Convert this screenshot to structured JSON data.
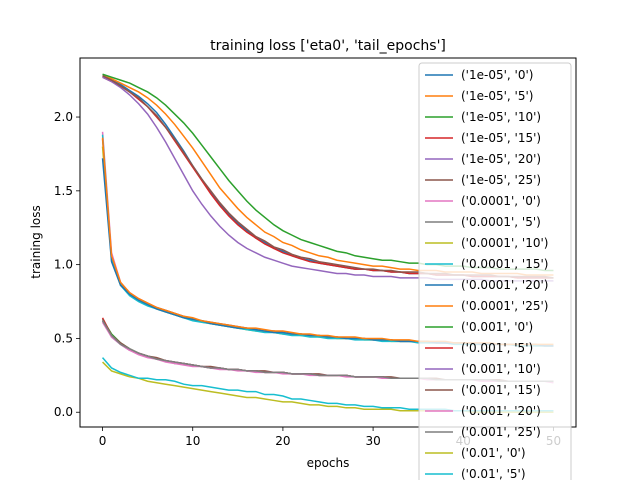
{
  "chart_data": {
    "type": "line",
    "title": "training loss ['eta0', 'tail_epochs']",
    "xlabel": "epochs",
    "ylabel": "training loss",
    "xlim": [
      -2.5,
      52.5
    ],
    "ylim": [
      -0.1,
      2.4
    ],
    "xticks": [
      0,
      10,
      20,
      30,
      40,
      50
    ],
    "yticks": [
      0.0,
      0.5,
      1.0,
      1.5,
      2.0
    ],
    "xtick_labels": [
      "0",
      "10",
      "20",
      "30",
      "40",
      "50"
    ],
    "ytick_labels": [
      "0.0",
      "0.5",
      "1.0",
      "1.5",
      "2.0"
    ],
    "grid": false,
    "legend_position": "right",
    "x": [
      0,
      1,
      2,
      3,
      4,
      5,
      6,
      7,
      8,
      9,
      10,
      11,
      12,
      13,
      14,
      15,
      16,
      17,
      18,
      19,
      20,
      21,
      22,
      23,
      24,
      25,
      26,
      27,
      28,
      29,
      30,
      31,
      32,
      33,
      34,
      35,
      36,
      37,
      38,
      39,
      40,
      41,
      42,
      43,
      44,
      45,
      46,
      47,
      48,
      49,
      50
    ],
    "series": [
      {
        "name": "('1e-05', '0')",
        "color": "#1f77b4",
        "values": [
          2.28,
          2.25,
          2.22,
          2.18,
          2.14,
          2.09,
          2.03,
          1.95,
          1.86,
          1.77,
          1.67,
          1.58,
          1.49,
          1.41,
          1.34,
          1.28,
          1.23,
          1.18,
          1.15,
          1.11,
          1.09,
          1.06,
          1.04,
          1.03,
          1.01,
          1.0,
          0.99,
          0.98,
          0.97,
          0.97,
          0.96,
          0.96,
          0.95,
          0.95,
          0.94,
          0.94,
          0.94,
          0.93,
          0.93,
          0.93,
          0.93,
          0.92,
          0.92,
          0.92,
          0.92,
          0.92,
          0.91,
          0.91,
          0.91,
          0.91,
          0.91
        ]
      },
      {
        "name": "('1e-05', '5')",
        "color": "#ff7f0e",
        "values": [
          2.28,
          2.26,
          2.23,
          2.2,
          2.17,
          2.13,
          2.08,
          2.02,
          1.95,
          1.87,
          1.79,
          1.7,
          1.61,
          1.52,
          1.45,
          1.38,
          1.32,
          1.27,
          1.22,
          1.19,
          1.15,
          1.13,
          1.1,
          1.08,
          1.06,
          1.05,
          1.03,
          1.02,
          1.01,
          1.0,
          0.99,
          0.99,
          0.98,
          0.97,
          0.97,
          0.96,
          0.96,
          0.96,
          0.95,
          0.95,
          0.95,
          0.95,
          0.94,
          0.94,
          0.94,
          0.94,
          0.94,
          0.93,
          0.93,
          0.93,
          0.93
        ]
      },
      {
        "name": "('1e-05', '10')",
        "color": "#2ca02c",
        "values": [
          2.29,
          2.27,
          2.25,
          2.23,
          2.2,
          2.17,
          2.13,
          2.08,
          2.02,
          1.96,
          1.89,
          1.81,
          1.73,
          1.65,
          1.57,
          1.5,
          1.43,
          1.37,
          1.32,
          1.27,
          1.23,
          1.2,
          1.17,
          1.15,
          1.13,
          1.11,
          1.09,
          1.08,
          1.06,
          1.05,
          1.04,
          1.03,
          1.03,
          1.02,
          1.01,
          1.01,
          1.0,
          1.0,
          0.99,
          0.99,
          0.99,
          0.98,
          0.98,
          0.98,
          0.97,
          0.97,
          0.97,
          0.97,
          0.97,
          0.96,
          0.96
        ]
      },
      {
        "name": "('1e-05', '15')",
        "color": "#d62728",
        "values": [
          2.27,
          2.24,
          2.21,
          2.17,
          2.12,
          2.07,
          2.0,
          1.93,
          1.84,
          1.75,
          1.66,
          1.57,
          1.48,
          1.4,
          1.33,
          1.27,
          1.22,
          1.18,
          1.14,
          1.11,
          1.08,
          1.06,
          1.04,
          1.02,
          1.01,
          1.0,
          0.99,
          0.98,
          0.97,
          0.97,
          0.96,
          0.96,
          0.95,
          0.95,
          0.94,
          0.94,
          0.94,
          0.93,
          0.93,
          0.93,
          0.93,
          0.92,
          0.92,
          0.92,
          0.92,
          0.92,
          0.91,
          0.91,
          0.91,
          0.91,
          0.91
        ]
      },
      {
        "name": "('1e-05', '20')",
        "color": "#9467bd",
        "values": [
          2.27,
          2.24,
          2.2,
          2.15,
          2.09,
          2.02,
          1.93,
          1.83,
          1.72,
          1.61,
          1.5,
          1.41,
          1.33,
          1.26,
          1.2,
          1.15,
          1.11,
          1.08,
          1.05,
          1.03,
          1.01,
          0.99,
          0.98,
          0.97,
          0.96,
          0.95,
          0.94,
          0.94,
          0.93,
          0.93,
          0.92,
          0.92,
          0.92,
          0.91,
          0.91,
          0.91,
          0.91,
          0.9,
          0.9,
          0.9,
          0.9,
          0.9,
          0.9,
          0.89,
          0.89,
          0.89,
          0.89,
          0.89,
          0.89,
          0.89,
          0.89
        ]
      },
      {
        "name": "('1e-05', '25')",
        "color": "#8c564b",
        "values": [
          2.28,
          2.25,
          2.21,
          2.17,
          2.13,
          2.07,
          2.01,
          1.93,
          1.85,
          1.76,
          1.67,
          1.58,
          1.5,
          1.42,
          1.35,
          1.29,
          1.24,
          1.19,
          1.16,
          1.12,
          1.1,
          1.07,
          1.05,
          1.04,
          1.02,
          1.01,
          1.0,
          0.99,
          0.98,
          0.97,
          0.97,
          0.96,
          0.96,
          0.95,
          0.95,
          0.95,
          0.94,
          0.94,
          0.94,
          0.93,
          0.93,
          0.93,
          0.93,
          0.93,
          0.92,
          0.92,
          0.92,
          0.92,
          0.92,
          0.92,
          0.91
        ]
      },
      {
        "name": "('0.0001', '0')",
        "color": "#e377c2",
        "values": [
          1.9,
          1.08,
          0.88,
          0.81,
          0.77,
          0.74,
          0.71,
          0.69,
          0.67,
          0.65,
          0.63,
          0.62,
          0.61,
          0.6,
          0.59,
          0.58,
          0.57,
          0.56,
          0.55,
          0.55,
          0.54,
          0.53,
          0.53,
          0.52,
          0.52,
          0.51,
          0.51,
          0.5,
          0.5,
          0.5,
          0.49,
          0.49,
          0.49,
          0.48,
          0.48,
          0.48,
          0.48,
          0.47,
          0.47,
          0.47,
          0.47,
          0.47,
          0.46,
          0.46,
          0.46,
          0.46,
          0.46,
          0.46,
          0.46,
          0.45,
          0.45
        ]
      },
      {
        "name": "('0.0001', '5')",
        "color": "#7f7f7f",
        "values": [
          1.85,
          1.05,
          0.87,
          0.8,
          0.76,
          0.73,
          0.71,
          0.69,
          0.67,
          0.65,
          0.63,
          0.62,
          0.61,
          0.6,
          0.59,
          0.58,
          0.57,
          0.56,
          0.55,
          0.55,
          0.54,
          0.53,
          0.53,
          0.52,
          0.52,
          0.51,
          0.51,
          0.5,
          0.5,
          0.5,
          0.49,
          0.49,
          0.49,
          0.48,
          0.48,
          0.48,
          0.48,
          0.47,
          0.47,
          0.47,
          0.47,
          0.47,
          0.46,
          0.46,
          0.46,
          0.46,
          0.46,
          0.46,
          0.46,
          0.45,
          0.45
        ]
      },
      {
        "name": "('0.0001', '10')",
        "color": "#bcbd22",
        "values": [
          1.8,
          1.03,
          0.86,
          0.8,
          0.76,
          0.73,
          0.7,
          0.68,
          0.66,
          0.64,
          0.63,
          0.61,
          0.6,
          0.59,
          0.58,
          0.57,
          0.56,
          0.55,
          0.55,
          0.54,
          0.53,
          0.53,
          0.52,
          0.52,
          0.51,
          0.51,
          0.5,
          0.5,
          0.5,
          0.49,
          0.49,
          0.49,
          0.48,
          0.48,
          0.48,
          0.48,
          0.47,
          0.47,
          0.47,
          0.47,
          0.47,
          0.46,
          0.46,
          0.46,
          0.46,
          0.46,
          0.46,
          0.46,
          0.45,
          0.45,
          0.45
        ]
      },
      {
        "name": "('0.0001', '15')",
        "color": "#17becf",
        "values": [
          1.88,
          1.04,
          0.86,
          0.79,
          0.75,
          0.72,
          0.7,
          0.68,
          0.66,
          0.64,
          0.62,
          0.61,
          0.6,
          0.59,
          0.58,
          0.57,
          0.56,
          0.55,
          0.54,
          0.54,
          0.53,
          0.52,
          0.52,
          0.51,
          0.51,
          0.5,
          0.5,
          0.5,
          0.49,
          0.49,
          0.49,
          0.48,
          0.48,
          0.48,
          0.48,
          0.47,
          0.47,
          0.47,
          0.47,
          0.46,
          0.46,
          0.46,
          0.46,
          0.46,
          0.46,
          0.46,
          0.45,
          0.45,
          0.45,
          0.45,
          0.45
        ]
      },
      {
        "name": "('0.0001', '20')",
        "color": "#1f77b4",
        "values": [
          1.72,
          1.02,
          0.86,
          0.8,
          0.76,
          0.73,
          0.7,
          0.68,
          0.66,
          0.64,
          0.63,
          0.62,
          0.6,
          0.59,
          0.58,
          0.57,
          0.57,
          0.56,
          0.55,
          0.54,
          0.54,
          0.53,
          0.53,
          0.52,
          0.52,
          0.51,
          0.51,
          0.5,
          0.5,
          0.5,
          0.49,
          0.49,
          0.49,
          0.48,
          0.48,
          0.48,
          0.48,
          0.47,
          0.47,
          0.47,
          0.47,
          0.47,
          0.46,
          0.46,
          0.46,
          0.46,
          0.46,
          0.46,
          0.46,
          0.45,
          0.45
        ]
      },
      {
        "name": "('0.0001', '25')",
        "color": "#ff7f0e",
        "values": [
          1.86,
          1.06,
          0.88,
          0.81,
          0.77,
          0.74,
          0.71,
          0.69,
          0.67,
          0.65,
          0.64,
          0.62,
          0.61,
          0.6,
          0.59,
          0.58,
          0.57,
          0.57,
          0.56,
          0.55,
          0.55,
          0.54,
          0.53,
          0.53,
          0.52,
          0.52,
          0.51,
          0.51,
          0.51,
          0.5,
          0.5,
          0.5,
          0.49,
          0.49,
          0.49,
          0.48,
          0.48,
          0.48,
          0.48,
          0.47,
          0.47,
          0.47,
          0.47,
          0.47,
          0.46,
          0.46,
          0.46,
          0.46,
          0.46,
          0.46,
          0.46
        ]
      },
      {
        "name": "('0.001', '0')",
        "color": "#2ca02c",
        "values": [
          0.63,
          0.53,
          0.47,
          0.43,
          0.4,
          0.38,
          0.36,
          0.35,
          0.33,
          0.33,
          0.32,
          0.31,
          0.3,
          0.3,
          0.29,
          0.29,
          0.28,
          0.28,
          0.27,
          0.27,
          0.27,
          0.26,
          0.26,
          0.26,
          0.25,
          0.25,
          0.25,
          0.25,
          0.24,
          0.24,
          0.24,
          0.24,
          0.23,
          0.23,
          0.23,
          0.23,
          0.23,
          0.22,
          0.22,
          0.22,
          0.22,
          0.22,
          0.22,
          0.22,
          0.21,
          0.21,
          0.21,
          0.21,
          0.21,
          0.21,
          0.21
        ]
      },
      {
        "name": "('0.001', '5')",
        "color": "#d62728",
        "values": [
          0.64,
          0.52,
          0.46,
          0.42,
          0.4,
          0.38,
          0.36,
          0.35,
          0.34,
          0.33,
          0.32,
          0.31,
          0.3,
          0.3,
          0.29,
          0.29,
          0.28,
          0.28,
          0.27,
          0.27,
          0.27,
          0.26,
          0.26,
          0.26,
          0.25,
          0.25,
          0.25,
          0.25,
          0.24,
          0.24,
          0.24,
          0.24,
          0.23,
          0.23,
          0.23,
          0.23,
          0.23,
          0.22,
          0.22,
          0.22,
          0.22,
          0.22,
          0.22,
          0.22,
          0.21,
          0.21,
          0.21,
          0.21,
          0.21,
          0.21,
          0.21
        ]
      },
      {
        "name": "('0.001', '10')",
        "color": "#9467bd",
        "values": [
          0.62,
          0.51,
          0.46,
          0.42,
          0.4,
          0.38,
          0.36,
          0.35,
          0.34,
          0.33,
          0.32,
          0.31,
          0.3,
          0.3,
          0.29,
          0.29,
          0.28,
          0.28,
          0.27,
          0.27,
          0.27,
          0.26,
          0.26,
          0.26,
          0.25,
          0.25,
          0.25,
          0.25,
          0.24,
          0.24,
          0.24,
          0.24,
          0.23,
          0.23,
          0.23,
          0.23,
          0.23,
          0.22,
          0.22,
          0.22,
          0.22,
          0.22,
          0.22,
          0.22,
          0.21,
          0.21,
          0.21,
          0.21,
          0.21,
          0.21,
          0.21
        ]
      },
      {
        "name": "('0.001', '15')",
        "color": "#8c564b",
        "values": [
          0.63,
          0.52,
          0.47,
          0.43,
          0.4,
          0.38,
          0.37,
          0.35,
          0.34,
          0.33,
          0.32,
          0.31,
          0.31,
          0.3,
          0.29,
          0.29,
          0.28,
          0.28,
          0.28,
          0.27,
          0.27,
          0.26,
          0.26,
          0.26,
          0.26,
          0.25,
          0.25,
          0.25,
          0.24,
          0.24,
          0.24,
          0.24,
          0.24,
          0.23,
          0.23,
          0.23,
          0.23,
          0.23,
          0.22,
          0.22,
          0.22,
          0.22,
          0.22,
          0.22,
          0.22,
          0.21,
          0.21,
          0.21,
          0.21,
          0.21,
          0.21
        ]
      },
      {
        "name": "('0.001', '20')",
        "color": "#e377c2",
        "values": [
          0.61,
          0.51,
          0.46,
          0.42,
          0.39,
          0.37,
          0.36,
          0.34,
          0.33,
          0.32,
          0.31,
          0.31,
          0.3,
          0.29,
          0.29,
          0.28,
          0.28,
          0.27,
          0.27,
          0.27,
          0.26,
          0.26,
          0.26,
          0.25,
          0.25,
          0.25,
          0.25,
          0.24,
          0.24,
          0.24,
          0.24,
          0.23,
          0.23,
          0.23,
          0.23,
          0.23,
          0.22,
          0.22,
          0.22,
          0.22,
          0.22,
          0.22,
          0.21,
          0.21,
          0.21,
          0.21,
          0.21,
          0.21,
          0.21,
          0.21,
          0.2
        ]
      },
      {
        "name": "('0.001', '25')",
        "color": "#7f7f7f",
        "values": [
          0.62,
          0.52,
          0.46,
          0.43,
          0.4,
          0.38,
          0.36,
          0.35,
          0.34,
          0.33,
          0.32,
          0.31,
          0.3,
          0.3,
          0.29,
          0.29,
          0.28,
          0.28,
          0.27,
          0.27,
          0.27,
          0.26,
          0.26,
          0.26,
          0.25,
          0.25,
          0.25,
          0.25,
          0.24,
          0.24,
          0.24,
          0.24,
          0.23,
          0.23,
          0.23,
          0.23,
          0.23,
          0.22,
          0.22,
          0.22,
          0.22,
          0.22,
          0.22,
          0.22,
          0.21,
          0.21,
          0.21,
          0.21,
          0.21,
          0.21,
          0.21
        ]
      },
      {
        "name": "('0.01', '0')",
        "color": "#bcbd22",
        "values": [
          0.34,
          0.28,
          0.26,
          0.24,
          0.23,
          0.21,
          0.2,
          0.19,
          0.18,
          0.17,
          0.16,
          0.15,
          0.14,
          0.13,
          0.12,
          0.11,
          0.1,
          0.1,
          0.09,
          0.08,
          0.07,
          0.07,
          0.06,
          0.05,
          0.05,
          0.04,
          0.04,
          0.03,
          0.03,
          0.02,
          0.02,
          0.02,
          0.02,
          0.01,
          0.01,
          0.01,
          0.01,
          0.01,
          0.01,
          0.01,
          0.01,
          0.0,
          0.0,
          0.0,
          0.0,
          0.0,
          0.0,
          0.0,
          0.0,
          0.0,
          0.0
        ]
      },
      {
        "name": "('0.01', '5')",
        "color": "#17becf",
        "values": [
          0.37,
          0.3,
          0.27,
          0.25,
          0.23,
          0.23,
          0.22,
          0.22,
          0.21,
          0.19,
          0.18,
          0.18,
          0.17,
          0.16,
          0.15,
          0.15,
          0.14,
          0.14,
          0.12,
          0.12,
          0.11,
          0.09,
          0.09,
          0.08,
          0.07,
          0.06,
          0.06,
          0.05,
          0.05,
          0.04,
          0.04,
          0.03,
          0.03,
          0.03,
          0.02,
          0.02,
          0.02,
          0.02,
          0.02,
          0.01,
          0.01,
          0.01,
          0.01,
          0.01,
          0.01,
          0.01,
          0.01,
          0.01,
          0.01,
          0.01,
          0.01
        ]
      }
    ]
  }
}
